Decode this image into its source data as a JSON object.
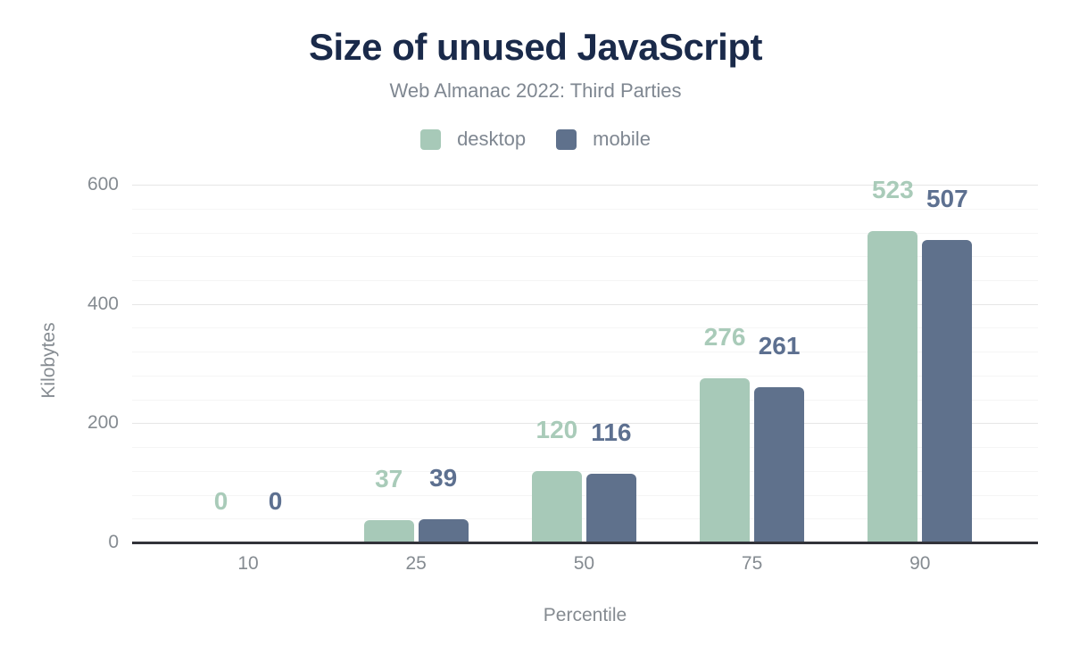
{
  "chart_data": {
    "type": "bar",
    "title": "Size of unused JavaScript",
    "subtitle": "Web Almanac 2022: Third Parties",
    "xlabel": "Percentile",
    "ylabel": "Kilobytes",
    "categories": [
      "10",
      "25",
      "50",
      "75",
      "90"
    ],
    "series": [
      {
        "name": "desktop",
        "values": [
          0,
          37,
          120,
          276,
          523
        ],
        "color": "#a7c9b8",
        "label_color": "#a9cbb9"
      },
      {
        "name": "mobile",
        "values": [
          0,
          39,
          116,
          261,
          507
        ],
        "color": "#5f718c",
        "label_color": "#5d7090"
      }
    ],
    "ylim": [
      0,
      600
    ],
    "y_ticks": [
      0,
      200,
      400,
      600
    ],
    "minor_grid_step": 40,
    "grid": true,
    "legend_position": "top",
    "colors": {
      "title": "#1a2a4a",
      "muted_text": "#7f8791",
      "axis_line": "#32333a",
      "major_grid": "#e6e6e6",
      "minor_grid": "#f5f5f5",
      "background": "#ffffff"
    }
  }
}
